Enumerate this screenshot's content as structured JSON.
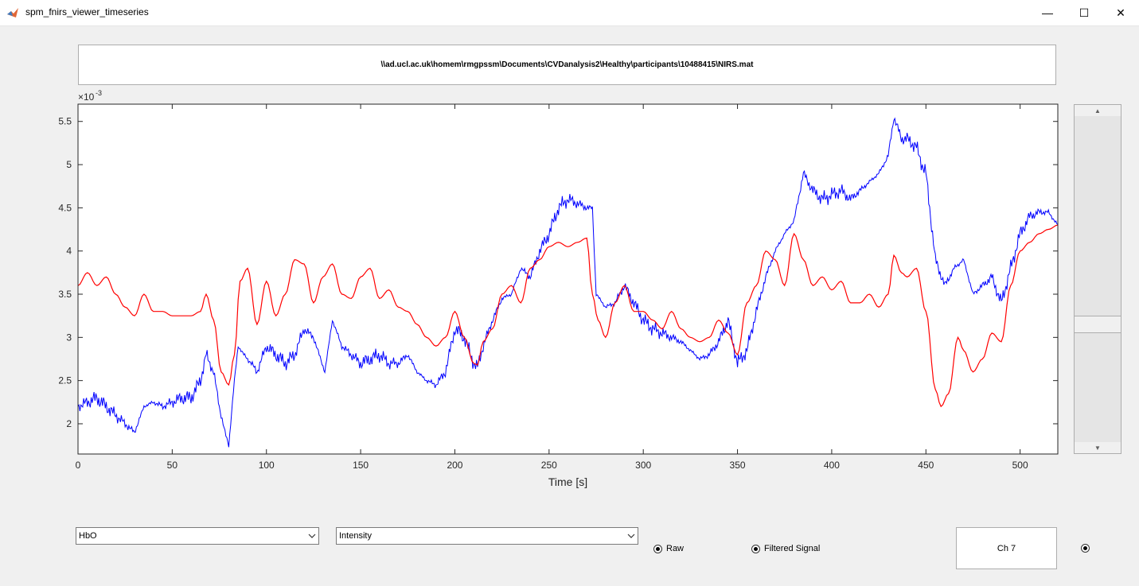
{
  "window": {
    "title": "spm_fnirs_viewer_timeseries",
    "minimize": "—",
    "maximize": "☐",
    "close": "✕"
  },
  "file_path": "\\\\ad.ucl.ac.uk\\homem\\rmgpssm\\Documents\\CVDanalysis2\\Healthy\\participants\\10488415\\NIRS.mat",
  "chart_data": {
    "type": "line",
    "xlabel": "Time [s]",
    "ylabel": "",
    "exponent_label": "×10",
    "exponent_power": "-3",
    "xlim": [
      0,
      520
    ],
    "ylim": [
      1.65,
      5.7
    ],
    "xticks": [
      0,
      50,
      100,
      150,
      200,
      250,
      300,
      350,
      400,
      450,
      500
    ],
    "yticks": [
      2,
      2.5,
      3,
      3.5,
      4,
      4.5,
      5,
      5.5
    ],
    "ytick_labels": [
      "2",
      "2.5",
      "3",
      "3.5",
      "4",
      "4.5",
      "5",
      "5.5"
    ],
    "grid": false,
    "series": [
      {
        "color": "#0000ff",
        "x": [
          0,
          5,
          10,
          15,
          20,
          25,
          30,
          35,
          40,
          45,
          50,
          55,
          60,
          65,
          68,
          72,
          75,
          78,
          80,
          83,
          85,
          88,
          92,
          95,
          100,
          105,
          110,
          115,
          120,
          125,
          128,
          131,
          135,
          140,
          145,
          150,
          155,
          160,
          165,
          170,
          175,
          180,
          185,
          190,
          195,
          200,
          205,
          210,
          212,
          215,
          220,
          225,
          230,
          235,
          240,
          245,
          250,
          255,
          260,
          265,
          270,
          273,
          275,
          280,
          285,
          290,
          295,
          300,
          305,
          310,
          315,
          320,
          325,
          330,
          335,
          340,
          345,
          350,
          355,
          360,
          365,
          370,
          375,
          380,
          385,
          390,
          395,
          400,
          405,
          410,
          415,
          420,
          425,
          430,
          433,
          437,
          440,
          445,
          448,
          450,
          455,
          460,
          465,
          470,
          475,
          480,
          485,
          490,
          495,
          500,
          505,
          510,
          515,
          520
        ],
        "y": [
          2.2,
          2.25,
          2.3,
          2.2,
          2.1,
          2.0,
          1.9,
          2.2,
          2.25,
          2.2,
          2.25,
          2.3,
          2.3,
          2.5,
          2.8,
          2.6,
          2.2,
          1.9,
          1.75,
          2.5,
          2.9,
          2.8,
          2.7,
          2.6,
          2.9,
          2.8,
          2.7,
          2.8,
          3.1,
          3.0,
          2.8,
          2.6,
          3.2,
          2.9,
          2.8,
          2.7,
          2.75,
          2.8,
          2.7,
          2.7,
          2.8,
          2.6,
          2.5,
          2.45,
          2.6,
          3.1,
          3.0,
          2.7,
          2.65,
          2.9,
          3.2,
          3.45,
          3.5,
          3.8,
          3.7,
          4.0,
          4.2,
          4.5,
          4.6,
          4.55,
          4.5,
          4.5,
          3.5,
          3.35,
          3.4,
          3.6,
          3.4,
          3.2,
          3.1,
          3.05,
          3.0,
          2.95,
          2.85,
          2.75,
          2.8,
          2.95,
          3.2,
          2.7,
          2.85,
          3.3,
          3.7,
          4.0,
          4.2,
          4.35,
          4.9,
          4.7,
          4.6,
          4.65,
          4.7,
          4.6,
          4.7,
          4.8,
          4.9,
          5.1,
          5.55,
          5.3,
          5.3,
          5.2,
          5.0,
          4.9,
          3.9,
          3.6,
          3.8,
          3.9,
          3.5,
          3.6,
          3.7,
          3.4,
          3.8,
          4.2,
          4.4,
          4.45,
          4.45,
          4.3
        ],
        "noise_amp": 0.1
      },
      {
        "color": "#ff0000",
        "x": [
          0,
          5,
          10,
          15,
          20,
          25,
          30,
          35,
          40,
          45,
          50,
          55,
          60,
          65,
          68,
          72,
          76,
          80,
          83,
          86,
          90,
          95,
          100,
          105,
          110,
          115,
          120,
          125,
          130,
          135,
          140,
          145,
          150,
          155,
          160,
          165,
          170,
          175,
          180,
          185,
          190,
          195,
          200,
          205,
          210,
          212,
          215,
          220,
          225,
          230,
          235,
          240,
          245,
          250,
          255,
          260,
          265,
          270,
          273,
          276,
          280,
          285,
          290,
          295,
          300,
          305,
          310,
          315,
          320,
          325,
          330,
          335,
          340,
          345,
          350,
          355,
          360,
          365,
          370,
          375,
          380,
          385,
          390,
          395,
          400,
          405,
          410,
          415,
          420,
          425,
          430,
          433,
          437,
          440,
          445,
          450,
          455,
          458,
          462,
          467,
          470,
          475,
          480,
          485,
          490,
          495,
          500,
          505,
          510,
          515,
          520
        ],
        "y": [
          3.6,
          3.75,
          3.6,
          3.7,
          3.5,
          3.35,
          3.25,
          3.5,
          3.3,
          3.3,
          3.25,
          3.25,
          3.25,
          3.3,
          3.5,
          3.2,
          2.6,
          2.45,
          2.8,
          3.65,
          3.8,
          3.15,
          3.65,
          3.25,
          3.5,
          3.9,
          3.85,
          3.4,
          3.7,
          3.85,
          3.5,
          3.45,
          3.7,
          3.8,
          3.45,
          3.55,
          3.35,
          3.3,
          3.15,
          3.0,
          2.9,
          3.0,
          3.3,
          3.0,
          2.7,
          2.68,
          2.95,
          3.1,
          3.5,
          3.6,
          3.4,
          3.8,
          3.9,
          4.05,
          4.1,
          4.05,
          4.1,
          4.15,
          3.5,
          3.2,
          3.0,
          3.4,
          3.6,
          3.3,
          3.3,
          3.2,
          3.1,
          3.3,
          3.1,
          3.0,
          2.95,
          3.0,
          3.2,
          3.05,
          2.8,
          3.4,
          3.6,
          4.0,
          3.9,
          3.6,
          4.2,
          3.9,
          3.6,
          3.7,
          3.55,
          3.65,
          3.4,
          3.4,
          3.5,
          3.35,
          3.5,
          3.95,
          3.75,
          3.7,
          3.8,
          3.3,
          2.4,
          2.2,
          2.35,
          3.0,
          2.85,
          2.6,
          2.75,
          3.05,
          2.95,
          3.6,
          4.0,
          4.1,
          4.2,
          4.25,
          4.3
        ]
      }
    ]
  },
  "scrollbar": {
    "up_arrow": "▲",
    "down_arrow": "▼"
  },
  "controls": {
    "signal_select": {
      "value": "HbO",
      "options": [
        "HbO"
      ]
    },
    "display_select": {
      "value": "Intensity",
      "options": [
        "Intensity"
      ]
    },
    "radio_raw": {
      "label": "Raw",
      "checked": true
    },
    "radio_filtered": {
      "label": "Filtered Signal",
      "checked": true
    },
    "channel_label": "Ch 7",
    "right_radio": {
      "checked": true
    }
  }
}
